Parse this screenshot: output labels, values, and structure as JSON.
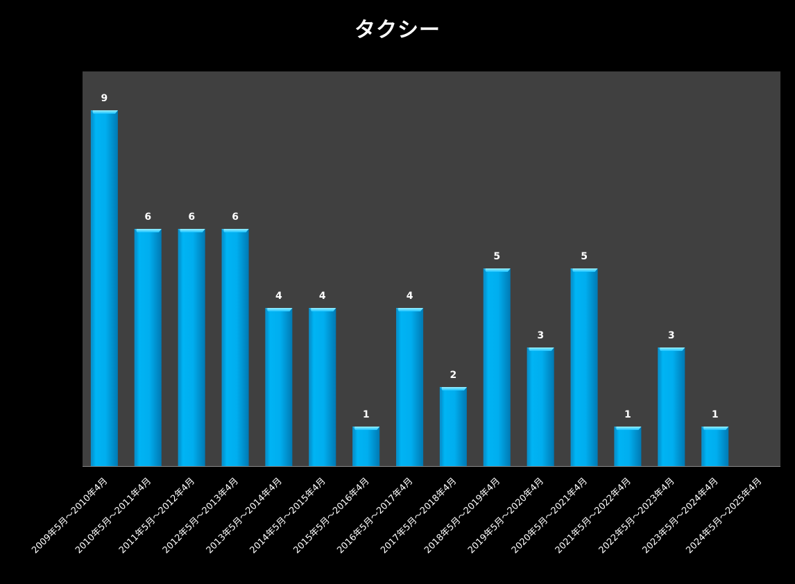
{
  "colors": {
    "background": "#000000",
    "plot_area": "#404040",
    "bar": "#00aeef",
    "bar_top": "#7fe6ff",
    "text": "#ffffff"
  },
  "chart_data": {
    "type": "bar",
    "title": "タクシー",
    "xlabel": "",
    "ylabel": "",
    "categories": [
      "2009年5月～2010年4月",
      "2010年5月～2011年4月",
      "2011年5月～2012年4月",
      "2012年5月～2013年4月",
      "2013年5月～2014年4月",
      "2014年5月～2015年4月",
      "2015年5月～2016年4月",
      "2016年5月～2017年4月",
      "2017年5月～2018年4月",
      "2018年5月～2019年4月",
      "2019年5月～2020年4月",
      "2020年5月～2021年4月",
      "2021年5月～2022年4月",
      "2022年5月～2023年4月",
      "2023年5月～2024年4月",
      "2024年5月～2025年4月"
    ],
    "values": [
      9,
      6,
      6,
      6,
      4,
      4,
      1,
      4,
      2,
      5,
      3,
      5,
      1,
      3,
      1,
      null
    ],
    "ylim": [
      0,
      10
    ],
    "grid": false,
    "legend": "none",
    "data_labels": true
  }
}
